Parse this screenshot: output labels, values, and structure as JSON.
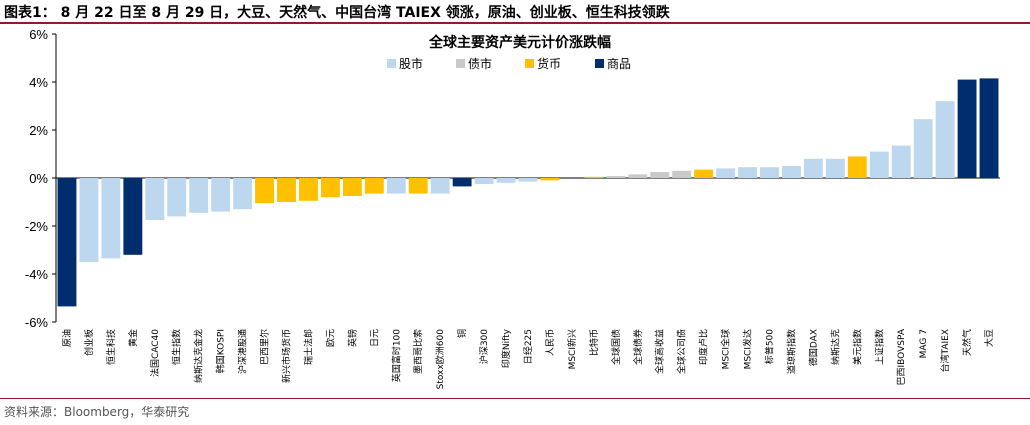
{
  "header": {
    "title": "图表1：  8 月 22 日至 8 月 29 日，大豆、天然气、中国台湾 TAIEX 领涨，原油、创业板、恒生科技领跌"
  },
  "footer": {
    "source": "资料来源：Bloomberg，华泰研究"
  },
  "colors": {
    "股市": "#bdd7ee",
    "债市": "#c9c9c9",
    "货币": "#ffc000",
    "商品": "#002d6e",
    "axis": "#000000",
    "header_rule": "#8a1f2b"
  },
  "chart_data": {
    "type": "bar",
    "title": "全球主要资产美元计价涨跌幅",
    "ylim": [
      -6,
      6
    ],
    "yticks": [
      -6,
      -4,
      -2,
      0,
      2,
      4,
      6
    ],
    "ytick_labels": [
      "-6%",
      "-4%",
      "-2%",
      "0%",
      "2%",
      "4%",
      "6%"
    ],
    "grid": false,
    "legend_position": "top-center",
    "legend": [
      "股市",
      "债市",
      "货币",
      "商品"
    ],
    "categories": [
      "原油",
      "创业板",
      "恒生科技",
      "黄金",
      "法国CAC40",
      "恒生指数",
      "纳斯达克金龙",
      "韩国KOSPI",
      "沪深港股通",
      "巴西里尔",
      "新兴市场货币",
      "瑞士法郎",
      "欧元",
      "英镑",
      "日元",
      "英国富时100",
      "墨西哥比索",
      "Stoxx欧洲600",
      "铜",
      "沪深300",
      "印度Nifty",
      "日经225",
      "人民币",
      "MSCI新兴",
      "比特币",
      "全球国债",
      "全球债券",
      "全球高收益",
      "全球公司债",
      "印度卢比",
      "MSCI全球",
      "MSCI发达",
      "标普500",
      "道琼斯指数",
      "德国DAX",
      "纳斯达克",
      "美元指数",
      "上证指数",
      "巴西IBOVSPA",
      "MAG 7",
      "台湾TAIEX",
      "天然气",
      "大豆"
    ],
    "asset_class": [
      "商品",
      "股市",
      "股市",
      "商品",
      "股市",
      "股市",
      "股市",
      "股市",
      "股市",
      "货币",
      "货币",
      "货币",
      "货币",
      "货币",
      "货币",
      "股市",
      "货币",
      "股市",
      "商品",
      "股市",
      "股市",
      "股市",
      "货币",
      "股市",
      "货币",
      "债市",
      "债市",
      "债市",
      "债市",
      "货币",
      "股市",
      "股市",
      "股市",
      "股市",
      "股市",
      "股市",
      "货币",
      "股市",
      "股市",
      "股市",
      "股市",
      "商品",
      "商品"
    ],
    "values": [
      -5.35,
      -3.5,
      -3.35,
      -3.2,
      -1.75,
      -1.6,
      -1.45,
      -1.4,
      -1.3,
      -1.05,
      -1.0,
      -0.95,
      -0.8,
      -0.75,
      -0.65,
      -0.65,
      -0.65,
      -0.65,
      -0.35,
      -0.25,
      -0.2,
      -0.15,
      -0.1,
      0.0,
      0.05,
      0.08,
      0.15,
      0.25,
      0.3,
      0.35,
      0.4,
      0.45,
      0.45,
      0.5,
      0.8,
      0.8,
      0.9,
      1.1,
      1.35,
      2.45,
      3.2,
      4.1,
      4.15
    ]
  }
}
